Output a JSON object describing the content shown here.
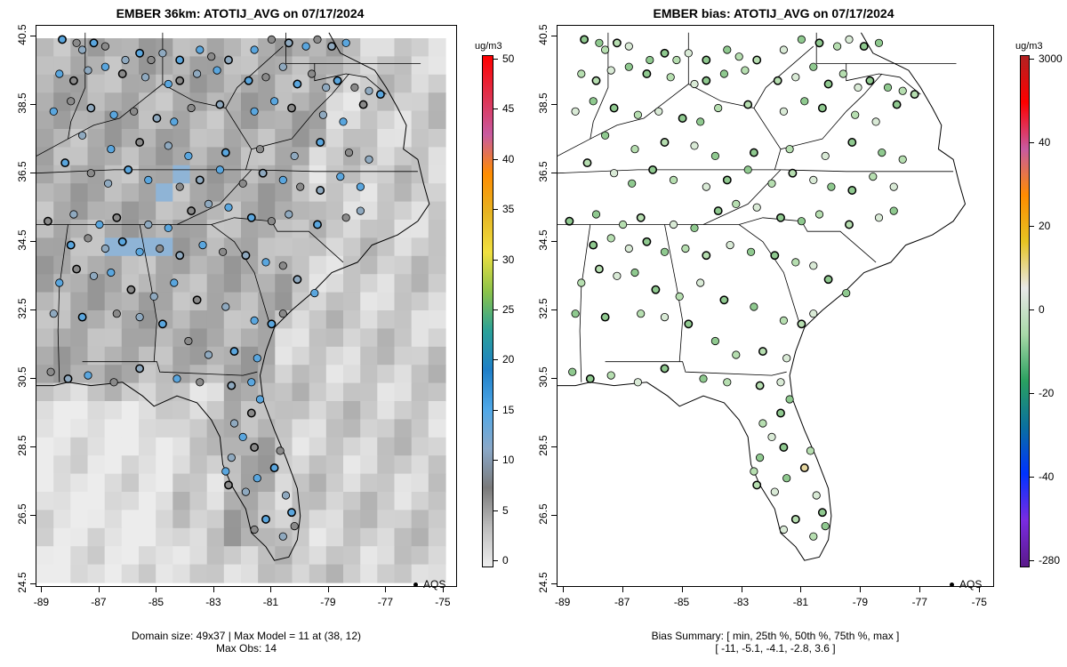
{
  "panels": [
    {
      "id": "model",
      "title": "EMBER 36km: ATOTIJ_AVG on 07/17/2024",
      "footer_lines": [
        "Domain size: 49x37 | Max Model = 11 at (38, 12)",
        "Max Obs: 14"
      ],
      "colorbar": {
        "unit": "ug/m3",
        "labels": [
          "50",
          "45",
          "40",
          "35",
          "30",
          "25",
          "20",
          "15",
          "10",
          "5",
          "0"
        ],
        "colors_top_to_bottom": [
          "#ff0000",
          "#e0304c",
          "#c85aa0",
          "#ff8c00",
          "#e6b422",
          "#f0e040",
          "#8bc34a",
          "#2aa198",
          "#1e7fc8",
          "#4fa8e8",
          "#8aa8c8",
          "#7a7a7a",
          "#bdbdbd",
          "#eeeeee"
        ]
      },
      "legend_label": "AQS"
    },
    {
      "id": "bias",
      "title": "EMBER bias: ATOTIJ_AVG on 07/17/2024",
      "footer_lines": [
        "Bias Summary: [ min, 25th %, 50th %, 75th %, max ]",
        "[ -11,   -5.1,   -4.1,   -2.8,   3.6 ]"
      ],
      "colorbar": {
        "unit": "ug/m3",
        "labels": [
          "3000",
          "40",
          "20",
          "0",
          "-20",
          "-40",
          "-280"
        ],
        "colors_top_to_bottom": [
          "#b22222",
          "#ff0000",
          "#c85aa0",
          "#ff8c00",
          "#e6c422",
          "#e8e8e8",
          "#a8d8a8",
          "#2aa060",
          "#0a70a0",
          "#0033ff",
          "#7a2be2",
          "#5a1a8a"
        ]
      },
      "legend_label": "AQS"
    }
  ],
  "axes": {
    "y_ticks": [
      "40.5",
      "38.5",
      "36.5",
      "34.5",
      "32.5",
      "30.5",
      "28.5",
      "26.5",
      "24.5"
    ],
    "x_ticks": [
      "-89",
      "-87",
      "-85",
      "-83",
      "-81",
      "-79",
      "-77",
      "-75"
    ],
    "lon_range": [
      -89.2,
      -74.5
    ],
    "lat_range": [
      24.4,
      40.8
    ]
  },
  "sites": [
    [
      -88.3,
      40.4
    ],
    [
      -87.8,
      40.3
    ],
    [
      -87.6,
      40.1
    ],
    [
      -87.2,
      40.3
    ],
    [
      -86.8,
      40.2
    ],
    [
      -86.1,
      39.8
    ],
    [
      -85.6,
      40.0
    ],
    [
      -85.2,
      39.8
    ],
    [
      -84.8,
      40.0
    ],
    [
      -84.2,
      39.8
    ],
    [
      -83.5,
      40.1
    ],
    [
      -83.1,
      39.9
    ],
    [
      -82.5,
      39.8
    ],
    [
      -81.6,
      40.1
    ],
    [
      -81.0,
      40.4
    ],
    [
      -80.4,
      40.3
    ],
    [
      -79.8,
      40.2
    ],
    [
      -79.4,
      40.4
    ],
    [
      -78.9,
      40.2
    ],
    [
      -78.4,
      40.3
    ],
    [
      -88.4,
      39.4
    ],
    [
      -87.9,
      39.2
    ],
    [
      -87.4,
      39.5
    ],
    [
      -86.8,
      39.6
    ],
    [
      -86.2,
      39.4
    ],
    [
      -85.4,
      39.3
    ],
    [
      -84.6,
      39.1
    ],
    [
      -84.2,
      39.2
    ],
    [
      -83.6,
      39.4
    ],
    [
      -82.9,
      39.5
    ],
    [
      -81.8,
      39.2
    ],
    [
      -81.2,
      39.3
    ],
    [
      -80.6,
      39.6
    ],
    [
      -80.1,
      39.1
    ],
    [
      -79.6,
      39.4
    ],
    [
      -79.1,
      39.0
    ],
    [
      -78.7,
      39.2
    ],
    [
      -78.1,
      39.0
    ],
    [
      -77.6,
      38.9
    ],
    [
      -77.2,
      38.8
    ],
    [
      -88.6,
      38.3
    ],
    [
      -88.0,
      38.6
    ],
    [
      -87.3,
      38.4
    ],
    [
      -86.5,
      38.2
    ],
    [
      -85.8,
      38.3
    ],
    [
      -85.0,
      38.1
    ],
    [
      -84.4,
      38.0
    ],
    [
      -83.8,
      38.4
    ],
    [
      -82.8,
      38.5
    ],
    [
      -81.6,
      38.3
    ],
    [
      -80.9,
      38.6
    ],
    [
      -80.3,
      38.4
    ],
    [
      -79.2,
      38.2
    ],
    [
      -78.5,
      38.0
    ],
    [
      -77.8,
      38.5
    ],
    [
      -87.6,
      37.6
    ],
    [
      -86.6,
      37.2
    ],
    [
      -85.6,
      37.4
    ],
    [
      -84.6,
      37.3
    ],
    [
      -83.9,
      37.0
    ],
    [
      -82.6,
      37.1
    ],
    [
      -81.4,
      37.2
    ],
    [
      -80.2,
      37.0
    ],
    [
      -79.3,
      37.4
    ],
    [
      -78.3,
      37.1
    ],
    [
      -77.6,
      36.9
    ],
    [
      -88.2,
      36.8
    ],
    [
      -87.3,
      36.5
    ],
    [
      -86.7,
      36.2
    ],
    [
      -86.0,
      36.6
    ],
    [
      -85.3,
      36.3
    ],
    [
      -84.2,
      36.1
    ],
    [
      -83.5,
      36.3
    ],
    [
      -82.8,
      36.6
    ],
    [
      -82.0,
      36.2
    ],
    [
      -81.3,
      36.5
    ],
    [
      -80.6,
      36.3
    ],
    [
      -80.0,
      36.1
    ],
    [
      -79.3,
      36.0
    ],
    [
      -78.6,
      36.4
    ],
    [
      -77.9,
      36.1
    ],
    [
      -88.8,
      35.1
    ],
    [
      -87.9,
      35.3
    ],
    [
      -87.0,
      35.0
    ],
    [
      -86.4,
      35.2
    ],
    [
      -85.3,
      35.0
    ],
    [
      -84.6,
      34.9
    ],
    [
      -83.8,
      35.4
    ],
    [
      -83.2,
      35.6
    ],
    [
      -82.5,
      35.5
    ],
    [
      -81.7,
      35.2
    ],
    [
      -81.0,
      35.1
    ],
    [
      -80.4,
      35.3
    ],
    [
      -79.4,
      35.0
    ],
    [
      -78.4,
      35.2
    ],
    [
      -77.9,
      35.4
    ],
    [
      -88.0,
      34.4
    ],
    [
      -87.4,
      34.6
    ],
    [
      -86.8,
      34.3
    ],
    [
      -86.2,
      34.5
    ],
    [
      -85.6,
      34.2
    ],
    [
      -84.9,
      34.3
    ],
    [
      -84.2,
      34.1
    ],
    [
      -83.4,
      34.4
    ],
    [
      -82.7,
      34.2
    ],
    [
      -81.9,
      34.1
    ],
    [
      -81.2,
      33.9
    ],
    [
      -80.6,
      33.8
    ],
    [
      -80.1,
      33.4
    ],
    [
      -79.5,
      33.0
    ],
    [
      -88.4,
      33.3
    ],
    [
      -87.8,
      33.7
    ],
    [
      -87.2,
      33.5
    ],
    [
      -86.6,
      33.6
    ],
    [
      -85.9,
      33.1
    ],
    [
      -85.1,
      32.9
    ],
    [
      -84.4,
      33.3
    ],
    [
      -83.6,
      32.8
    ],
    [
      -82.6,
      32.6
    ],
    [
      -81.6,
      32.2
    ],
    [
      -81.0,
      32.1
    ],
    [
      -80.6,
      32.4
    ],
    [
      -88.6,
      32.4
    ],
    [
      -87.6,
      32.3
    ],
    [
      -86.4,
      32.4
    ],
    [
      -85.6,
      32.3
    ],
    [
      -84.8,
      32.1
    ],
    [
      -83.9,
      31.6
    ],
    [
      -83.2,
      31.2
    ],
    [
      -82.3,
      31.3
    ],
    [
      -81.5,
      31.1
    ],
    [
      -88.7,
      30.7
    ],
    [
      -88.1,
      30.5
    ],
    [
      -87.4,
      30.6
    ],
    [
      -86.5,
      30.4
    ],
    [
      -85.6,
      30.8
    ],
    [
      -84.3,
      30.5
    ],
    [
      -83.5,
      30.4
    ],
    [
      -82.4,
      30.3
    ],
    [
      -81.7,
      30.4
    ],
    [
      -81.4,
      29.9
    ],
    [
      -81.7,
      29.5
    ],
    [
      -82.3,
      29.2
    ],
    [
      -82.0,
      28.8
    ],
    [
      -81.6,
      28.5
    ],
    [
      -82.4,
      28.2
    ],
    [
      -82.6,
      27.8
    ],
    [
      -82.5,
      27.4
    ],
    [
      -81.9,
      27.2
    ],
    [
      -81.5,
      27.6
    ],
    [
      -80.9,
      27.9
    ],
    [
      -80.7,
      28.4
    ],
    [
      -80.5,
      27.1
    ],
    [
      -80.3,
      26.6
    ],
    [
      -80.2,
      26.2
    ],
    [
      -80.6,
      25.9
    ],
    [
      -81.2,
      26.4
    ],
    [
      -81.6,
      26.1
    ]
  ]
}
